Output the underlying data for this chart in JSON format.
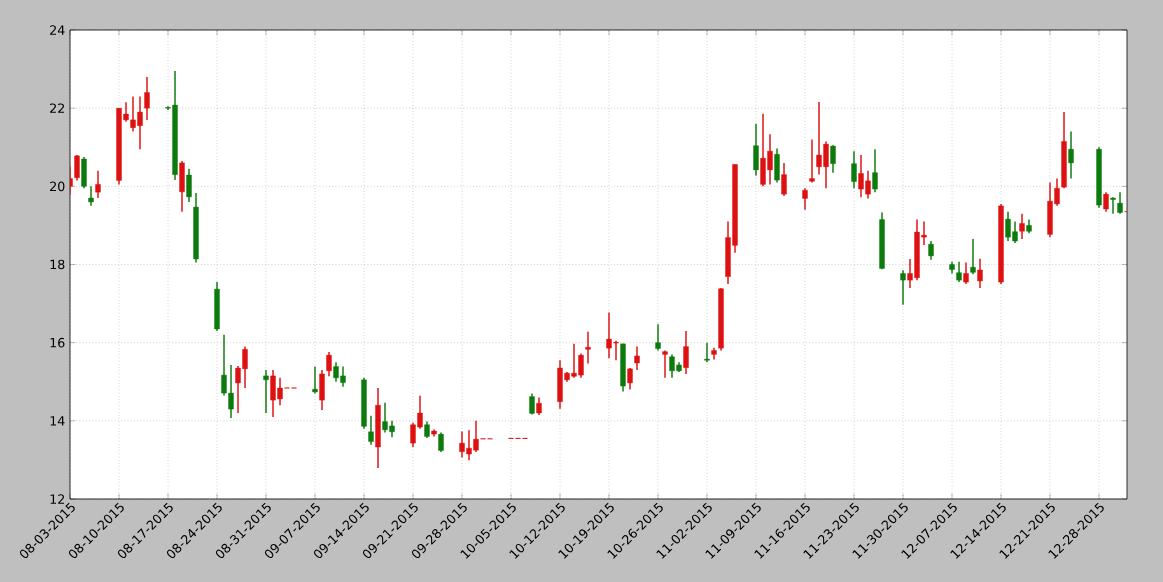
{
  "chart_data": {
    "type": "candlestick",
    "x": [
      "2015-08-03",
      "2015-08-04",
      "2015-08-05",
      "2015-08-06",
      "2015-08-07",
      "2015-08-10",
      "2015-08-11",
      "2015-08-12",
      "2015-08-13",
      "2015-08-14",
      "2015-08-17",
      "2015-08-18",
      "2015-08-19",
      "2015-08-20",
      "2015-08-21",
      "2015-08-24",
      "2015-08-25",
      "2015-08-26",
      "2015-08-27",
      "2015-08-28",
      "2015-08-31",
      "2015-09-01",
      "2015-09-02",
      "2015-09-03",
      "2015-09-04",
      "2015-09-07",
      "2015-09-08",
      "2015-09-09",
      "2015-09-10",
      "2015-09-11",
      "2015-09-14",
      "2015-09-15",
      "2015-09-16",
      "2015-09-17",
      "2015-09-18",
      "2015-09-21",
      "2015-09-22",
      "2015-09-23",
      "2015-09-24",
      "2015-09-25",
      "2015-09-28",
      "2015-09-29",
      "2015-09-30",
      "2015-10-01",
      "2015-10-02",
      "2015-10-05",
      "2015-10-06",
      "2015-10-07",
      "2015-10-08",
      "2015-10-09",
      "2015-10-12",
      "2015-10-13",
      "2015-10-14",
      "2015-10-15",
      "2015-10-16",
      "2015-10-19",
      "2015-10-20",
      "2015-10-21",
      "2015-10-22",
      "2015-10-23",
      "2015-10-26",
      "2015-10-27",
      "2015-10-28",
      "2015-10-29",
      "2015-10-30",
      "2015-11-02",
      "2015-11-03",
      "2015-11-04",
      "2015-11-05",
      "2015-11-06",
      "2015-11-09",
      "2015-11-10",
      "2015-11-11",
      "2015-11-12",
      "2015-11-13",
      "2015-11-16",
      "2015-11-17",
      "2015-11-18",
      "2015-11-19",
      "2015-11-20",
      "2015-11-23",
      "2015-11-24",
      "2015-11-25",
      "2015-11-26",
      "2015-11-27",
      "2015-11-30",
      "2015-12-01",
      "2015-12-02",
      "2015-12-03",
      "2015-12-04",
      "2015-12-07",
      "2015-12-08",
      "2015-12-09",
      "2015-12-10",
      "2015-12-11",
      "2015-12-14",
      "2015-12-15",
      "2015-12-16",
      "2015-12-17",
      "2015-12-18",
      "2015-12-21",
      "2015-12-22",
      "2015-12-23",
      "2015-12-24",
      "2015-12-28",
      "2015-12-29",
      "2015-12-30",
      "2015-12-31",
      "2016-01-01"
    ],
    "ohlc": [
      [
        20.0,
        20.5,
        19.8,
        20.2
      ],
      [
        20.22,
        20.8,
        20.15,
        20.78
      ],
      [
        20.7,
        20.75,
        19.95,
        20.0
      ],
      [
        19.7,
        20.0,
        19.5,
        19.6
      ],
      [
        19.85,
        20.4,
        19.7,
        20.05
      ],
      [
        20.15,
        22.0,
        20.05,
        22.0
      ],
      [
        21.7,
        22.15,
        21.65,
        21.85
      ],
      [
        21.5,
        22.3,
        21.4,
        21.7
      ],
      [
        21.55,
        22.3,
        20.95,
        21.9
      ],
      [
        22.0,
        22.8,
        21.7,
        22.4
      ],
      [
        22.02,
        22.05,
        21.95,
        22.0
      ],
      [
        22.08,
        22.95,
        20.16,
        20.3
      ],
      [
        19.86,
        20.65,
        19.35,
        20.6
      ],
      [
        20.29,
        20.45,
        19.6,
        19.73
      ],
      [
        19.47,
        19.83,
        18.05,
        18.14
      ],
      [
        17.37,
        17.55,
        16.3,
        16.35
      ],
      [
        15.17,
        16.2,
        14.65,
        14.71
      ],
      [
        14.71,
        15.43,
        14.07,
        14.3
      ],
      [
        14.97,
        15.4,
        14.2,
        15.35
      ],
      [
        15.33,
        15.9,
        14.84,
        15.83
      ],
      [
        15.15,
        15.3,
        14.2,
        15.05
      ],
      [
        14.53,
        15.3,
        14.1,
        15.15
      ],
      [
        14.56,
        15.1,
        14.4,
        14.84
      ],
      [
        14.84,
        14.84,
        14.84,
        14.84
      ],
      [
        14.84,
        14.84,
        14.84,
        14.84
      ],
      [
        14.81,
        15.39,
        14.7,
        14.74
      ],
      [
        14.53,
        15.3,
        14.28,
        15.2
      ],
      [
        15.28,
        15.76,
        15.14,
        15.68
      ],
      [
        15.39,
        15.5,
        15.0,
        15.1
      ],
      [
        15.15,
        15.39,
        14.87,
        14.98
      ],
      [
        15.05,
        15.1,
        13.8,
        13.86
      ],
      [
        13.72,
        14.13,
        13.39,
        13.47
      ],
      [
        13.33,
        14.84,
        12.79,
        14.4
      ],
      [
        13.98,
        14.46,
        13.7,
        13.77
      ],
      [
        13.87,
        14.0,
        13.58,
        13.72
      ],
      [
        13.43,
        13.95,
        13.33,
        13.9
      ],
      [
        13.84,
        14.64,
        13.8,
        14.2
      ],
      [
        13.9,
        13.98,
        13.56,
        13.6
      ],
      [
        13.66,
        13.78,
        13.6,
        13.74
      ],
      [
        13.66,
        13.7,
        13.2,
        13.24
      ],
      [
        13.21,
        13.73,
        13.06,
        13.43
      ],
      [
        13.15,
        13.76,
        12.99,
        13.3
      ],
      [
        13.25,
        14.0,
        13.2,
        13.53
      ],
      [
        13.54,
        13.54,
        13.54,
        13.54
      ],
      [
        13.54,
        13.54,
        13.54,
        13.54
      ],
      [
        13.55,
        13.55,
        13.55,
        13.55
      ],
      [
        13.55,
        13.55,
        13.55,
        13.55
      ],
      [
        13.55,
        13.55,
        13.55,
        13.55
      ],
      [
        14.62,
        14.7,
        14.16,
        14.19
      ],
      [
        14.2,
        14.6,
        14.15,
        14.45
      ],
      [
        14.49,
        15.55,
        14.31,
        15.35
      ],
      [
        15.05,
        15.25,
        15.0,
        15.22
      ],
      [
        15.14,
        15.97,
        15.1,
        15.22
      ],
      [
        15.17,
        15.72,
        15.1,
        15.68
      ],
      [
        15.83,
        16.28,
        15.47,
        15.88
      ],
      [
        15.86,
        16.77,
        15.6,
        16.09
      ],
      [
        15.99,
        16.05,
        15.55,
        16.01
      ],
      [
        15.97,
        15.97,
        14.75,
        14.89
      ],
      [
        14.97,
        15.35,
        14.8,
        15.33
      ],
      [
        15.48,
        15.9,
        15.3,
        15.66
      ],
      [
        16.0,
        16.47,
        15.8,
        15.85
      ],
      [
        15.7,
        15.8,
        15.1,
        15.77
      ],
      [
        15.64,
        15.7,
        15.1,
        15.28
      ],
      [
        15.43,
        15.5,
        15.25,
        15.28
      ],
      [
        15.36,
        16.3,
        15.2,
        15.9
      ],
      [
        15.58,
        16.0,
        15.5,
        15.55
      ],
      [
        15.7,
        15.87,
        15.57,
        15.8
      ],
      [
        15.86,
        17.4,
        15.8,
        17.38
      ],
      [
        17.69,
        19.1,
        17.5,
        18.69
      ],
      [
        18.49,
        20.56,
        18.3,
        20.56
      ],
      [
        21.04,
        21.6,
        20.28,
        20.42
      ],
      [
        20.05,
        21.86,
        20.0,
        20.72
      ],
      [
        20.42,
        21.33,
        20.05,
        20.9
      ],
      [
        20.82,
        20.97,
        20.1,
        20.16
      ],
      [
        19.8,
        20.6,
        19.75,
        20.3
      ],
      [
        19.69,
        19.95,
        19.4,
        19.9
      ],
      [
        20.13,
        21.2,
        20.1,
        20.2
      ],
      [
        20.5,
        22.16,
        20.3,
        20.8
      ],
      [
        20.5,
        21.15,
        19.95,
        21.08
      ],
      [
        21.03,
        21.05,
        20.35,
        20.58
      ],
      [
        20.58,
        20.9,
        19.95,
        20.12
      ],
      [
        19.93,
        20.8,
        19.72,
        20.33
      ],
      [
        19.8,
        20.4,
        19.69,
        20.14
      ],
      [
        20.35,
        20.95,
        19.85,
        19.93
      ],
      [
        19.15,
        19.33,
        17.88,
        17.9
      ],
      [
        17.77,
        17.85,
        16.97,
        17.6
      ],
      [
        17.6,
        18.14,
        17.4,
        17.77
      ],
      [
        17.66,
        19.15,
        17.6,
        18.83
      ],
      [
        18.7,
        19.1,
        18.5,
        18.75
      ],
      [
        18.52,
        18.6,
        18.12,
        18.22
      ],
      [
        18.0,
        18.07,
        17.77,
        17.87
      ],
      [
        17.79,
        18.07,
        17.55,
        17.6
      ],
      [
        17.55,
        18.05,
        17.5,
        17.77
      ],
      [
        17.93,
        18.65,
        17.75,
        17.8
      ],
      [
        17.58,
        18.15,
        17.4,
        17.86
      ],
      [
        17.55,
        19.55,
        17.5,
        19.5
      ],
      [
        19.16,
        19.35,
        18.6,
        18.7
      ],
      [
        18.84,
        19.1,
        18.55,
        18.6
      ],
      [
        18.85,
        19.3,
        18.65,
        19.05
      ],
      [
        19.0,
        19.15,
        18.8,
        18.85
      ],
      [
        18.77,
        20.1,
        18.7,
        19.62
      ],
      [
        19.55,
        20.2,
        19.5,
        19.95
      ],
      [
        19.98,
        21.9,
        19.95,
        21.15
      ],
      [
        20.95,
        21.4,
        20.2,
        20.6
      ],
      [
        20.95,
        21.0,
        19.45,
        19.52
      ],
      [
        19.42,
        19.85,
        19.35,
        19.8
      ],
      [
        19.7,
        19.72,
        19.3,
        19.66
      ],
      [
        19.57,
        19.85,
        19.3,
        19.33
      ],
      [
        19.35,
        19.35,
        19.35,
        19.35
      ]
    ],
    "colors": [
      "#dd1111",
      "#dd1111",
      "#0d7a0d",
      "#0d7a0d",
      "#dd1111",
      "#dd1111",
      "#dd1111",
      "#dd1111",
      "#dd1111",
      "#dd1111",
      "#0d7a0d",
      "#0d7a0d",
      "#dd1111",
      "#0d7a0d",
      "#0d7a0d",
      "#0d7a0d",
      "#0d7a0d",
      "#0d7a0d",
      "#dd1111",
      "#dd1111",
      "#0d7a0d",
      "#dd1111",
      "#dd1111",
      "#dd1111",
      "#dd1111",
      "#0d7a0d",
      "#dd1111",
      "#dd1111",
      "#0d7a0d",
      "#0d7a0d",
      "#0d7a0d",
      "#0d7a0d",
      "#dd1111",
      "#0d7a0d",
      "#0d7a0d",
      "#dd1111",
      "#dd1111",
      "#0d7a0d",
      "#dd1111",
      "#0d7a0d",
      "#dd1111",
      "#dd1111",
      "#dd1111",
      "#dd1111",
      "#dd1111",
      "#dd1111",
      "#dd1111",
      "#dd1111",
      "#0d7a0d",
      "#dd1111",
      "#dd1111",
      "#dd1111",
      "#dd1111",
      "#dd1111",
      "#dd1111",
      "#dd1111",
      "#dd1111",
      "#0d7a0d",
      "#dd1111",
      "#dd1111",
      "#0d7a0d",
      "#dd1111",
      "#0d7a0d",
      "#0d7a0d",
      "#dd1111",
      "#0d7a0d",
      "#dd1111",
      "#dd1111",
      "#dd1111",
      "#dd1111",
      "#0d7a0d",
      "#dd1111",
      "#dd1111",
      "#0d7a0d",
      "#dd1111",
      "#dd1111",
      "#dd1111",
      "#dd1111",
      "#dd1111",
      "#0d7a0d",
      "#0d7a0d",
      "#dd1111",
      "#dd1111",
      "#0d7a0d",
      "#0d7a0d",
      "#0d7a0d",
      "#dd1111",
      "#dd1111",
      "#dd1111",
      "#0d7a0d",
      "#0d7a0d",
      "#0d7a0d",
      "#dd1111",
      "#0d7a0d",
      "#dd1111",
      "#dd1111",
      "#0d7a0d",
      "#0d7a0d",
      "#dd1111",
      "#0d7a0d",
      "#dd1111",
      "#dd1111",
      "#dd1111",
      "#0d7a0d",
      "#0d7a0d",
      "#dd1111",
      "#0d7a0d",
      "#0d7a0d",
      "#dd1111"
    ],
    "xlim": [
      "2015-08-03",
      "2016-01-01"
    ],
    "xticks": [
      {
        "value": "2015-08-03",
        "label": "08-03-2015"
      },
      {
        "value": "2015-08-10",
        "label": "08-10-2015"
      },
      {
        "value": "2015-08-17",
        "label": "08-17-2015"
      },
      {
        "value": "2015-08-24",
        "label": "08-24-2015"
      },
      {
        "value": "2015-08-31",
        "label": "08-31-2015"
      },
      {
        "value": "2015-09-07",
        "label": "09-07-2015"
      },
      {
        "value": "2015-09-14",
        "label": "09-14-2015"
      },
      {
        "value": "2015-09-21",
        "label": "09-21-2015"
      },
      {
        "value": "2015-09-28",
        "label": "09-28-2015"
      },
      {
        "value": "2015-10-05",
        "label": "10-05-2015"
      },
      {
        "value": "2015-10-12",
        "label": "10-12-2015"
      },
      {
        "value": "2015-10-19",
        "label": "10-19-2015"
      },
      {
        "value": "2015-10-26",
        "label": "10-26-2015"
      },
      {
        "value": "2015-11-02",
        "label": "11-02-2015"
      },
      {
        "value": "2015-11-09",
        "label": "11-09-2015"
      },
      {
        "value": "2015-11-16",
        "label": "11-16-2015"
      },
      {
        "value": "2015-11-23",
        "label": "11-23-2015"
      },
      {
        "value": "2015-11-30",
        "label": "11-30-2015"
      },
      {
        "value": "2015-12-07",
        "label": "12-07-2015"
      },
      {
        "value": "2015-12-14",
        "label": "12-14-2015"
      },
      {
        "value": "2015-12-21",
        "label": "12-21-2015"
      },
      {
        "value": "2015-12-28",
        "label": "12-28-2015"
      }
    ],
    "ylim": [
      12,
      24
    ],
    "yticks": [
      12,
      14,
      16,
      18,
      20,
      22,
      24
    ],
    "grid": true
  }
}
